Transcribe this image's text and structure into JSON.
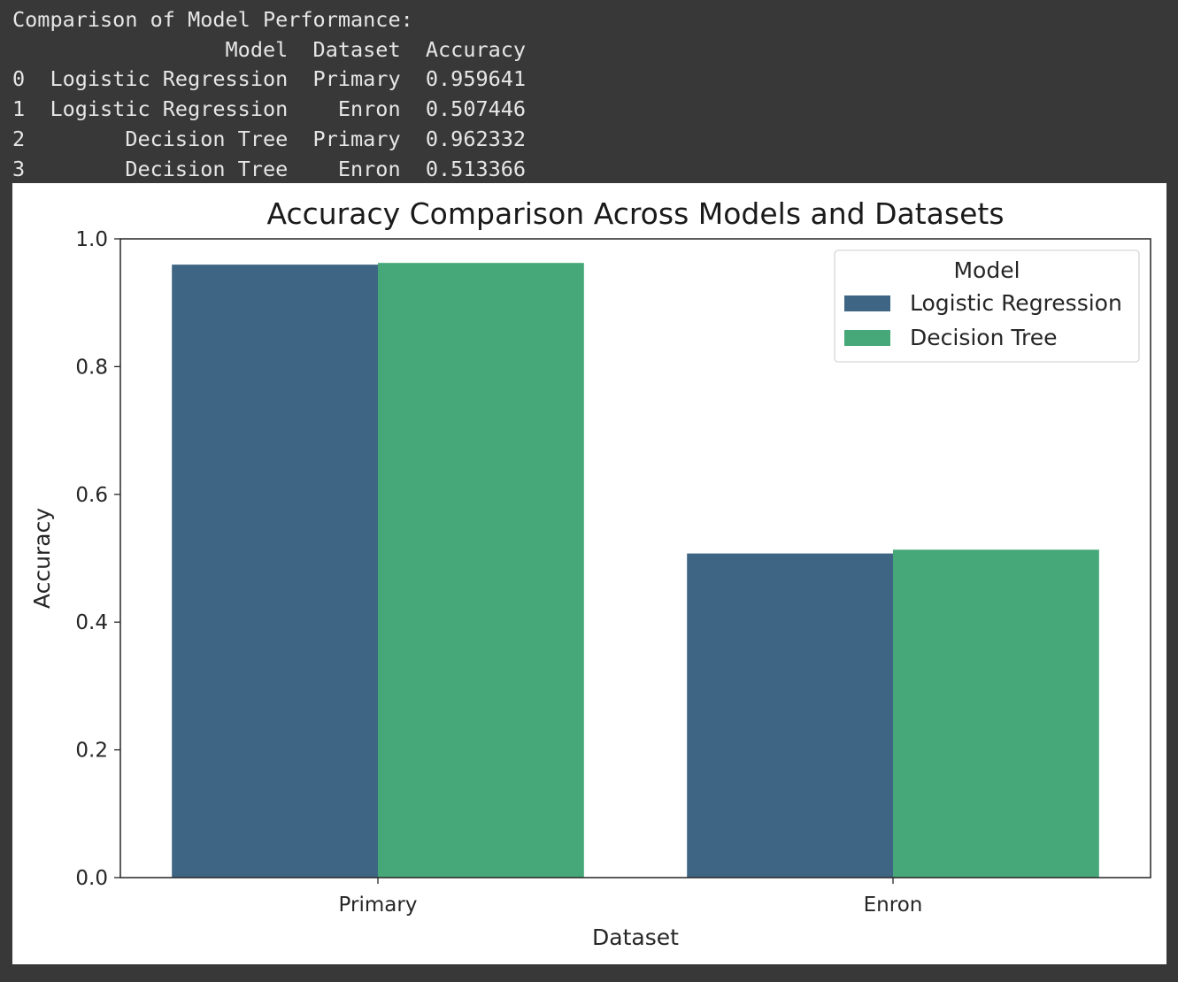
{
  "console": {
    "heading": "Comparison of Model Performance:",
    "columns": [
      "Model",
      "Dataset",
      "Accuracy"
    ],
    "rows": [
      {
        "index": "0",
        "model": "Logistic Regression",
        "dataset": "Primary",
        "accuracy": "0.959641"
      },
      {
        "index": "1",
        "model": "Logistic Regression",
        "dataset": "Enron",
        "accuracy": "0.507446"
      },
      {
        "index": "2",
        "model": "Decision Tree",
        "dataset": "Primary",
        "accuracy": "0.962332"
      },
      {
        "index": "3",
        "model": "Decision Tree",
        "dataset": "Enron",
        "accuracy": "0.513366"
      }
    ]
  },
  "chart_data": {
    "type": "bar",
    "title": "Accuracy Comparison Across Models and Datasets",
    "xlabel": "Dataset",
    "ylabel": "Accuracy",
    "categories": [
      "Primary",
      "Enron"
    ],
    "series": [
      {
        "name": "Logistic Regression",
        "values": [
          0.959641,
          0.507446
        ],
        "color": "#3e6583"
      },
      {
        "name": "Decision Tree",
        "values": [
          0.962332,
          0.513366
        ],
        "color": "#46a878"
      }
    ],
    "ylim": [
      0,
      1.0
    ],
    "yticks": [
      "0.0",
      "0.2",
      "0.4",
      "0.6",
      "0.8",
      "1.0"
    ],
    "legend_title": "Model",
    "legend_position": "top-right",
    "grid": false
  }
}
